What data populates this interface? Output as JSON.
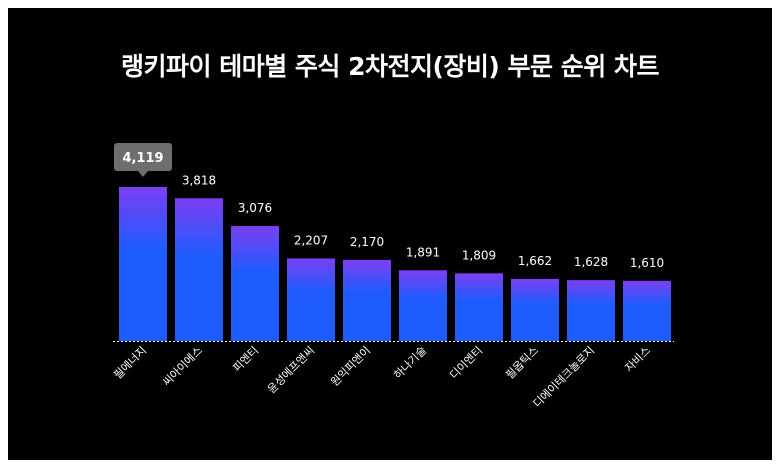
{
  "chart_data": {
    "type": "bar",
    "title": "랭키파이 테마별 주식 2차전지(장비) 부문 순위 차트",
    "categories": [
      "필에너지",
      "씨아이에스",
      "피엔티",
      "윤성에프앤씨",
      "원익피앤이",
      "하나기술",
      "디이엔티",
      "필옵틱스",
      "디에이테크놀로지",
      "자비스"
    ],
    "values": [
      4119,
      3818,
      3076,
      2207,
      2170,
      1891,
      1809,
      1662,
      1628,
      1610
    ],
    "value_labels": [
      "4,119",
      "3,818",
      "3,076",
      "2,207",
      "2,170",
      "1,891",
      "1,809",
      "1,662",
      "1,628",
      "1,610"
    ],
    "highlight_index": 0,
    "ylim": [
      0,
      4119
    ],
    "grid": false,
    "legend": "none"
  },
  "colors": {
    "background": "#000000",
    "frame": "#ffffff",
    "bar_top": "#7b3ff2",
    "bar_bottom": "#1f5cff",
    "text": "#ffffff",
    "tooltip_bg": "#6e6e6e",
    "baseline": "#ffffff"
  }
}
